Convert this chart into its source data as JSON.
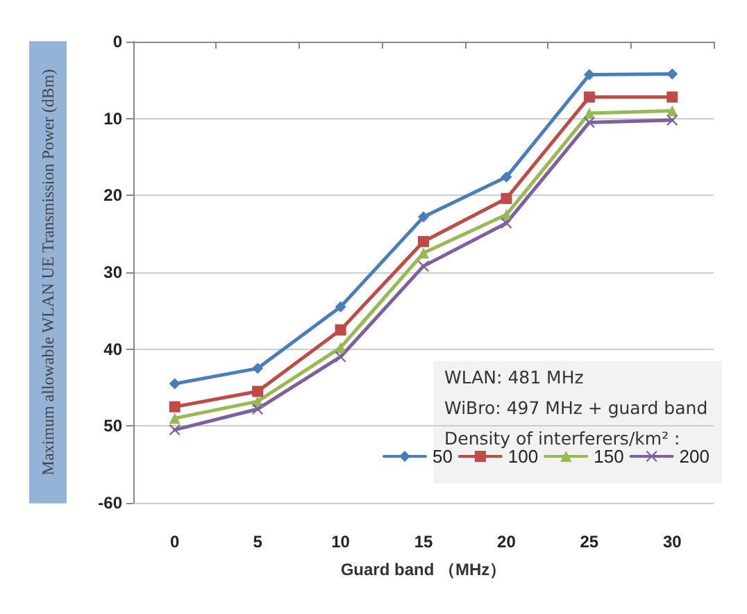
{
  "chart_data": {
    "type": "line",
    "xlabel": "Guard band （MHz）",
    "ylabel": "Maximum allowable WLAN UE Transmission Power (dBm)",
    "categories": [
      "0",
      "5",
      "10",
      "15",
      "20",
      "25",
      "30"
    ],
    "series": [
      {
        "name": "50",
        "color": "#4a7ebb",
        "marker": "diamond",
        "values": [
          -44.5,
          -42.5,
          -34.5,
          -22.8,
          -17.6,
          -4.3,
          -4.2
        ]
      },
      {
        "name": "100",
        "color": "#be4b48",
        "marker": "square",
        "values": [
          -47.5,
          -45.5,
          -37.5,
          -26,
          -20.4,
          -7.2,
          -7.2
        ]
      },
      {
        "name": "150",
        "color": "#98b954",
        "marker": "triangle",
        "values": [
          -49,
          -46.8,
          -39.8,
          -27.5,
          -22.5,
          -9.3,
          -9
        ]
      },
      {
        "name": "200",
        "color": "#7d60a0",
        "marker": "cross",
        "values": [
          -50.5,
          -47.8,
          -41,
          -29.2,
          -23.6,
          -10.5,
          -10.2
        ]
      }
    ],
    "ylim": [
      -60,
      0
    ],
    "yticks": [
      0,
      {
        "value": -10,
        "label": "10"
      },
      {
        "value": -20,
        "label": "20"
      },
      {
        "value": -30,
        "label": "30"
      },
      {
        "value": -40,
        "label": "40"
      },
      {
        "value": -50,
        "label": "50"
      },
      -60
    ],
    "annotations": [
      "WLAN: 481 MHz",
      "WiBro: 497 MHz + guard band",
      "Density of interferers/km² :"
    ],
    "grid": "y",
    "legend": "bottom right"
  }
}
